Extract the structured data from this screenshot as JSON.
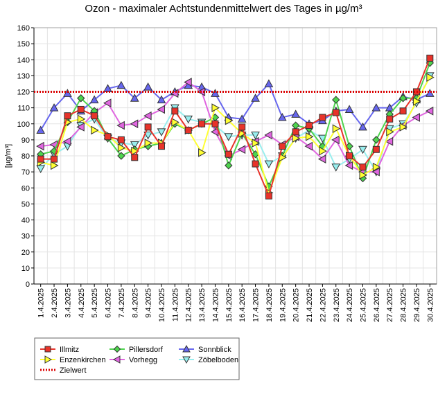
{
  "chart_data": {
    "type": "line",
    "title": "Ozon -  maximaler Achtstundenmittelwert des Tages in µg/m³",
    "ylabel": "[µg/m³]",
    "xlabel": "",
    "ylim": [
      0,
      160
    ],
    "yticks": [
      0,
      10,
      20,
      30,
      40,
      50,
      60,
      70,
      80,
      90,
      100,
      110,
      120,
      130,
      140,
      150,
      160
    ],
    "grid": true,
    "legend_position": "bottom-left",
    "categories": [
      "1.4.2025",
      "2.4.2025",
      "3.4.2025",
      "4.4.2025",
      "5.4.2025",
      "6.4.2025",
      "7.4.2025",
      "8.4.2025",
      "9.4.2025",
      "10.4.2025",
      "11.4.2025",
      "12.4.2025",
      "13.4.2025",
      "14.4.2025",
      "15.4.2025",
      "16.4.2025",
      "17.4.2025",
      "18.4.2025",
      "19.4.2025",
      "20.4.2025",
      "21.4.2025",
      "22.4.2025",
      "23.4.2025",
      "24.4.2025",
      "25.4.2025",
      "26.4.2025",
      "27.4.2025",
      "28.4.2025",
      "29.4.2025",
      "30.4.2025"
    ],
    "series": [
      {
        "name": "Illmitz",
        "color": "#e8332a",
        "marker": "square",
        "fill": "#e8332a",
        "values": [
          78,
          78,
          105,
          109,
          105,
          92,
          90,
          79,
          98,
          86,
          108,
          96,
          100,
          100,
          81,
          98,
          75,
          55,
          86,
          95,
          99,
          104,
          107,
          80,
          73,
          84,
          103,
          108,
          120,
          141
        ]
      },
      {
        "name": "Enzenkirchen",
        "color": "#ffff33",
        "marker": "triangle-right",
        "fill": "#ffff33",
        "values": [
          76,
          74,
          101,
          103,
          96,
          93,
          85,
          83,
          88,
          88,
          101,
          96,
          82,
          110,
          102,
          94,
          88,
          57,
          79,
          91,
          92,
          83,
          97,
          80,
          68,
          73,
          95,
          98,
          114,
          129
        ]
      },
      {
        "name": "Pillersdorf",
        "color": "#4dd44d",
        "marker": "diamond",
        "fill": "#4dd44d",
        "values": [
          81,
          83,
          101,
          116,
          108,
          91,
          80,
          84,
          86,
          88,
          100,
          96,
          100,
          104,
          74,
          94,
          81,
          61,
          80,
          99,
          97,
          86,
          115,
          86,
          66,
          90,
          106,
          116,
          116,
          138
        ]
      },
      {
        "name": "Vorhegg",
        "color": "#e066e0",
        "marker": "triangle-left",
        "fill": "#e066e0",
        "values": [
          86,
          87,
          89,
          98,
          107,
          113,
          99,
          100,
          105,
          109,
          119,
          126,
          120,
          95,
          80,
          84,
          89,
          93,
          87,
          92,
          86,
          78,
          90,
          74,
          70,
          70,
          89,
          99,
          104,
          108
        ]
      },
      {
        "name": "Sonnblick",
        "color": "#6666ee",
        "marker": "triangle-up",
        "fill": "#6666ee",
        "values": [
          96,
          110,
          119,
          108,
          115,
          122,
          124,
          116,
          123,
          115,
          120,
          124,
          123,
          119,
          104,
          103,
          116,
          125,
          104,
          106,
          100,
          102,
          108,
          109,
          98,
          110,
          110,
          117,
          115,
          119
        ]
      },
      {
        "name": "Zöbelboden",
        "color": "#99eeee",
        "marker": "triangle-down",
        "fill": "#99eeee",
        "values": [
          72,
          81,
          86,
          99,
          103,
          91,
          88,
          87,
          93,
          95,
          110,
          103,
          101,
          99,
          92,
          93,
          93,
          75,
          80,
          91,
          96,
          91,
          73,
          78,
          84,
          70,
          97,
          100,
          113,
          130
        ]
      }
    ],
    "reference_line": {
      "name": "Zielwert",
      "value": 120,
      "color": "#dd0000"
    }
  }
}
